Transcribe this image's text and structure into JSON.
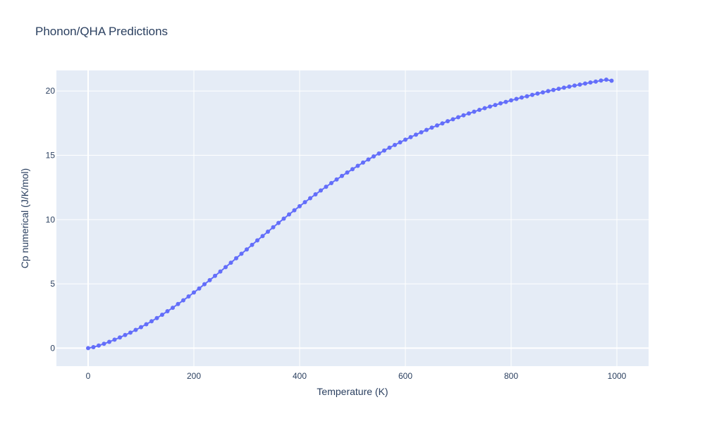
{
  "chart_data": {
    "type": "line",
    "title": "Phonon/QHA Predictions",
    "xlabel": "Temperature (K)",
    "ylabel": "Cp numerical (J/K/mol)",
    "xlim": [
      -60,
      1060
    ],
    "ylim": [
      -1.4,
      21.6
    ],
    "x_ticks": [
      0,
      200,
      400,
      600,
      800,
      1000
    ],
    "y_ticks": [
      0,
      5,
      10,
      15,
      20
    ],
    "grid": true,
    "legend": "none",
    "colors": {
      "plot_bg": "#e5ecf6",
      "grid": "#ffffff",
      "series": "#636efa",
      "text": "#2a3f5f"
    },
    "series": [
      {
        "mode": "lines+markers",
        "x": [
          0,
          10,
          20,
          30,
          40,
          50,
          60,
          70,
          80,
          90,
          100,
          110,
          120,
          130,
          140,
          150,
          160,
          170,
          180,
          190,
          200,
          210,
          220,
          230,
          240,
          250,
          260,
          270,
          280,
          290,
          300,
          310,
          320,
          330,
          340,
          350,
          360,
          370,
          380,
          390,
          400,
          410,
          420,
          430,
          440,
          450,
          460,
          470,
          480,
          490,
          500,
          510,
          520,
          530,
          540,
          550,
          560,
          570,
          580,
          590,
          600,
          610,
          620,
          630,
          640,
          650,
          660,
          670,
          680,
          690,
          700,
          710,
          720,
          730,
          740,
          750,
          760,
          770,
          780,
          790,
          800,
          810,
          820,
          830,
          840,
          850,
          860,
          870,
          880,
          890,
          900,
          910,
          920,
          930,
          940,
          950,
          960,
          970,
          980,
          990
        ],
        "y": [
          0,
          0.08,
          0.2,
          0.34,
          0.49,
          0.66,
          0.83,
          1.02,
          1.21,
          1.42,
          1.63,
          1.86,
          2.09,
          2.34,
          2.6,
          2.87,
          3.14,
          3.43,
          3.72,
          4.02,
          4.33,
          4.64,
          4.97,
          5.29,
          5.62,
          5.96,
          6.3,
          6.64,
          6.99,
          7.34,
          7.68,
          8.03,
          8.38,
          8.72,
          9.06,
          9.4,
          9.74,
          10.07,
          10.4,
          10.72,
          11.04,
          11.35,
          11.66,
          11.96,
          12.26,
          12.55,
          12.84,
          13.12,
          13.39,
          13.66,
          13.92,
          14.18,
          14.43,
          14.67,
          14.91,
          15.14,
          15.37,
          15.59,
          15.8,
          16.01,
          16.21,
          16.41,
          16.6,
          16.79,
          16.97,
          17.15,
          17.32,
          17.48,
          17.65,
          17.8,
          17.96,
          18.11,
          18.25,
          18.39,
          18.53,
          18.66,
          18.79,
          18.91,
          19.04,
          19.15,
          19.27,
          19.38,
          19.49,
          19.59,
          19.7,
          19.8,
          19.89,
          19.99,
          20.08,
          20.17,
          20.26,
          20.34,
          20.42,
          20.5,
          20.58,
          20.66,
          20.73,
          20.81,
          20.88,
          20.8
        ]
      }
    ]
  }
}
